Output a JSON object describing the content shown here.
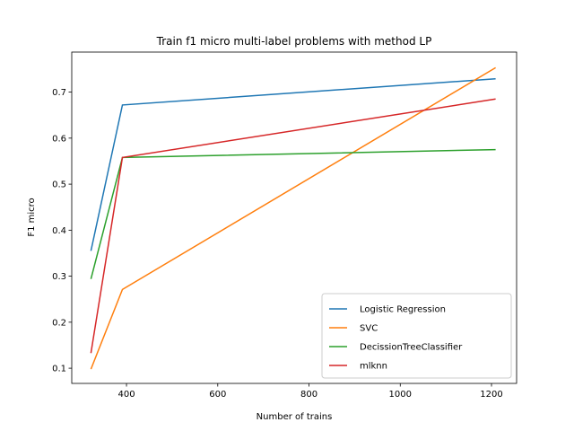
{
  "chart_data": {
    "type": "line",
    "title": "Train f1 micro multi-label problems with method LP",
    "xlabel": "Number of trains",
    "ylabel": "F1 micro",
    "xlim": [
      280,
      1255
    ],
    "ylim": [
      0.067,
      0.787
    ],
    "x_ticks": [
      400,
      600,
      800,
      1000,
      1200
    ],
    "y_ticks": [
      0.1,
      0.2,
      0.3,
      0.4,
      0.5,
      0.6,
      0.7
    ],
    "grid": false,
    "legend_position": "lower-right",
    "series": [
      {
        "name": "Logistic Regression",
        "color": "#1f77b4",
        "x": [
          322,
          391,
          1209
        ],
        "y": [
          0.355,
          0.672,
          0.729
        ]
      },
      {
        "name": "SVC",
        "color": "#ff7f0e",
        "x": [
          322,
          391,
          1209
        ],
        "y": [
          0.098,
          0.271,
          0.753
        ]
      },
      {
        "name": "DecissionTreeClassifier",
        "color": "#2ca02c",
        "x": [
          322,
          391,
          1209
        ],
        "y": [
          0.294,
          0.558,
          0.575
        ]
      },
      {
        "name": "mlknn",
        "color": "#d62728",
        "x": [
          322,
          391,
          1209
        ],
        "y": [
          0.133,
          0.558,
          0.685
        ]
      }
    ]
  }
}
